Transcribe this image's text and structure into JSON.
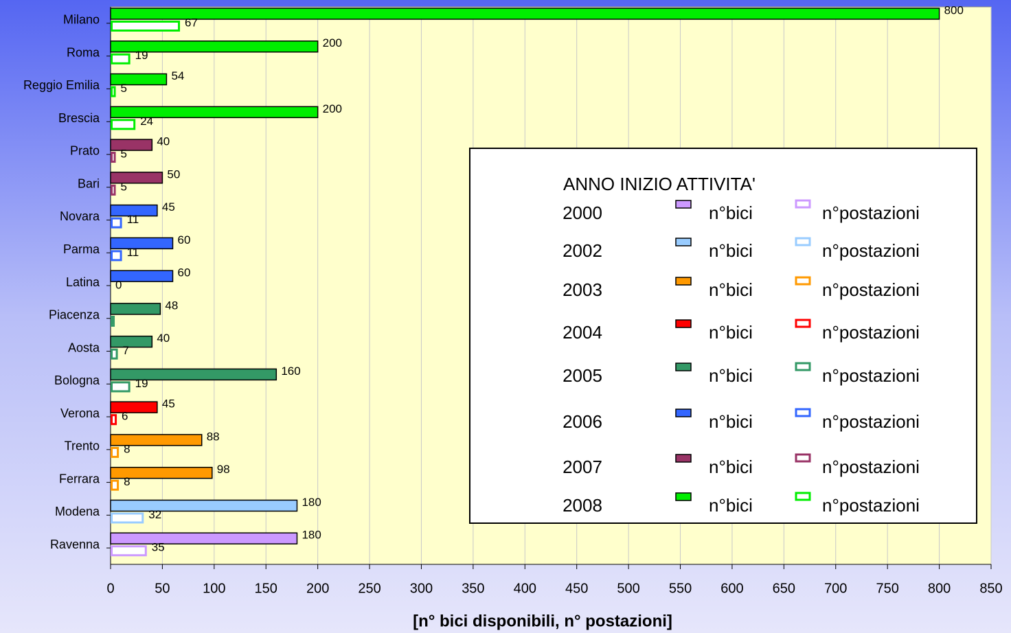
{
  "chart_data": {
    "type": "bar",
    "orientation": "horizontal",
    "categories": [
      "Milano",
      "Roma",
      "Reggio Emilia",
      "Brescia",
      "Prato",
      "Bari",
      "Novara",
      "Parma",
      "Latina",
      "Piacenza",
      "Aosta",
      "Bologna",
      "Verona",
      "Trento",
      "Ferrara",
      "Modena",
      "Ravenna"
    ],
    "colors": [
      "#00ee00",
      "#00ee00",
      "#00ee00",
      "#00ee00",
      "#993366",
      "#993366",
      "#3366ff",
      "#3366ff",
      "#3366ff",
      "#339966",
      "#339966",
      "#339966",
      "#ff0000",
      "#ff9900",
      "#ff9900",
      "#99ccff",
      "#cc99ff"
    ],
    "series": [
      {
        "name": "n°bici",
        "style": "filled",
        "values": [
          800,
          200,
          54,
          200,
          40,
          50,
          45,
          60,
          60,
          48,
          40,
          160,
          45,
          88,
          98,
          180,
          180
        ]
      },
      {
        "name": "n°postazioni",
        "style": "outline",
        "values": [
          67,
          19,
          5,
          24,
          5,
          5,
          11,
          11,
          0,
          4,
          7,
          19,
          6,
          8,
          8,
          32,
          35
        ],
        "value_labels": [
          67,
          19,
          5,
          24,
          5,
          5,
          11,
          11,
          0,
          null,
          7,
          19,
          6,
          8,
          8,
          32,
          35
        ]
      }
    ],
    "xlabel": "[n° bici disponibili, n° postazioni]",
    "xlim": [
      0,
      850
    ],
    "xticks": [
      0,
      50,
      100,
      150,
      200,
      250,
      300,
      350,
      400,
      450,
      500,
      550,
      600,
      650,
      700,
      750,
      800,
      850
    ],
    "grid": true,
    "legend": {
      "title": "ANNO INIZIO ATTIVITA'",
      "years": [
        "2000",
        "2002",
        "2003",
        "2004",
        "2005",
        "2006",
        "2007",
        "2008"
      ],
      "colors": [
        "#cc99ff",
        "#99ccff",
        "#ff9900",
        "#ff0000",
        "#339966",
        "#3366ff",
        "#993366",
        "#00ee00"
      ]
    }
  }
}
